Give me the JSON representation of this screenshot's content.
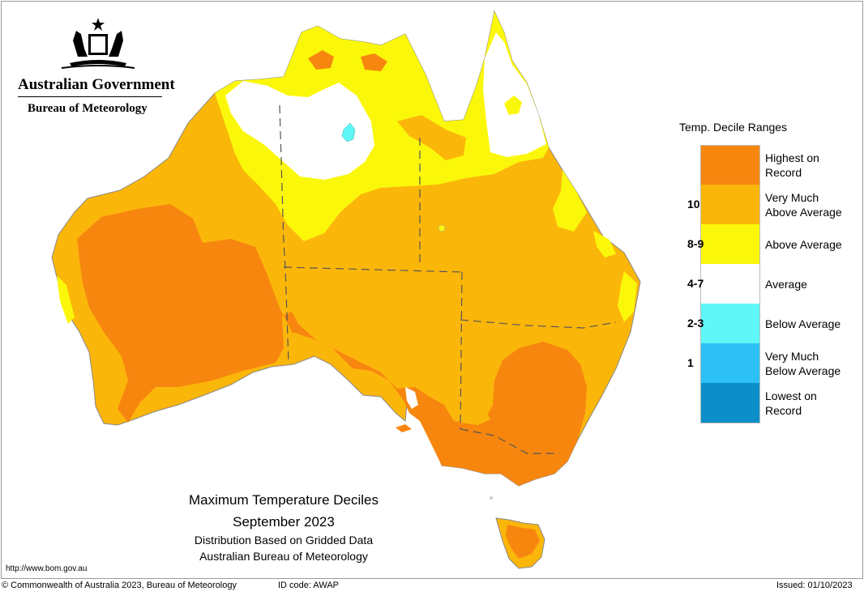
{
  "header": {
    "government": "Australian Government",
    "bureau": "Bureau of Meteorology"
  },
  "legend": {
    "title": "Temp. Decile Ranges",
    "items": [
      {
        "label": "Highest on Record",
        "line1": "Highest on",
        "line2": "Record",
        "decile": "",
        "color": "#f7860f"
      },
      {
        "label": "Very Much Above Average",
        "line1": "Very Much",
        "line2": "Above Average",
        "decile": "10",
        "color": "#fbb60a"
      },
      {
        "label": "Above Average",
        "line1": "Above Average",
        "line2": "",
        "decile": "8-9",
        "color": "#fbf70a"
      },
      {
        "label": "Average",
        "line1": "Average",
        "line2": "",
        "decile": "4-7",
        "color": "#ffffff"
      },
      {
        "label": "Below Average",
        "line1": "Below Average",
        "line2": "",
        "decile": "2-3",
        "color": "#5ff7f7"
      },
      {
        "label": "Very Much Below Average",
        "line1": "Very Much",
        "line2": "Below Average",
        "decile": "1",
        "color": "#2cc0f7"
      },
      {
        "label": "Lowest on Record",
        "line1": "Lowest on",
        "line2": "Record",
        "decile": "",
        "color": "#0c8ec8"
      }
    ]
  },
  "caption": {
    "title": "Maximum Temperature Deciles",
    "period": "September 2023",
    "method": "Distribution Based on Gridded Data",
    "source": "Australian Bureau of Meteorology"
  },
  "footer": {
    "url": "http://www.bom.gov.au",
    "copyright": "© Commonwealth of Australia 2023, Bureau of Meteorology",
    "id_code": "ID code: AWAP",
    "issued": "Issued: 01/10/2023"
  },
  "map_colors": {
    "highest": "#f7860f",
    "very_much_above": "#fbb60a",
    "above": "#fbf70a",
    "average": "#ffffff",
    "below": "#5ff7f7",
    "border": "#555555"
  }
}
